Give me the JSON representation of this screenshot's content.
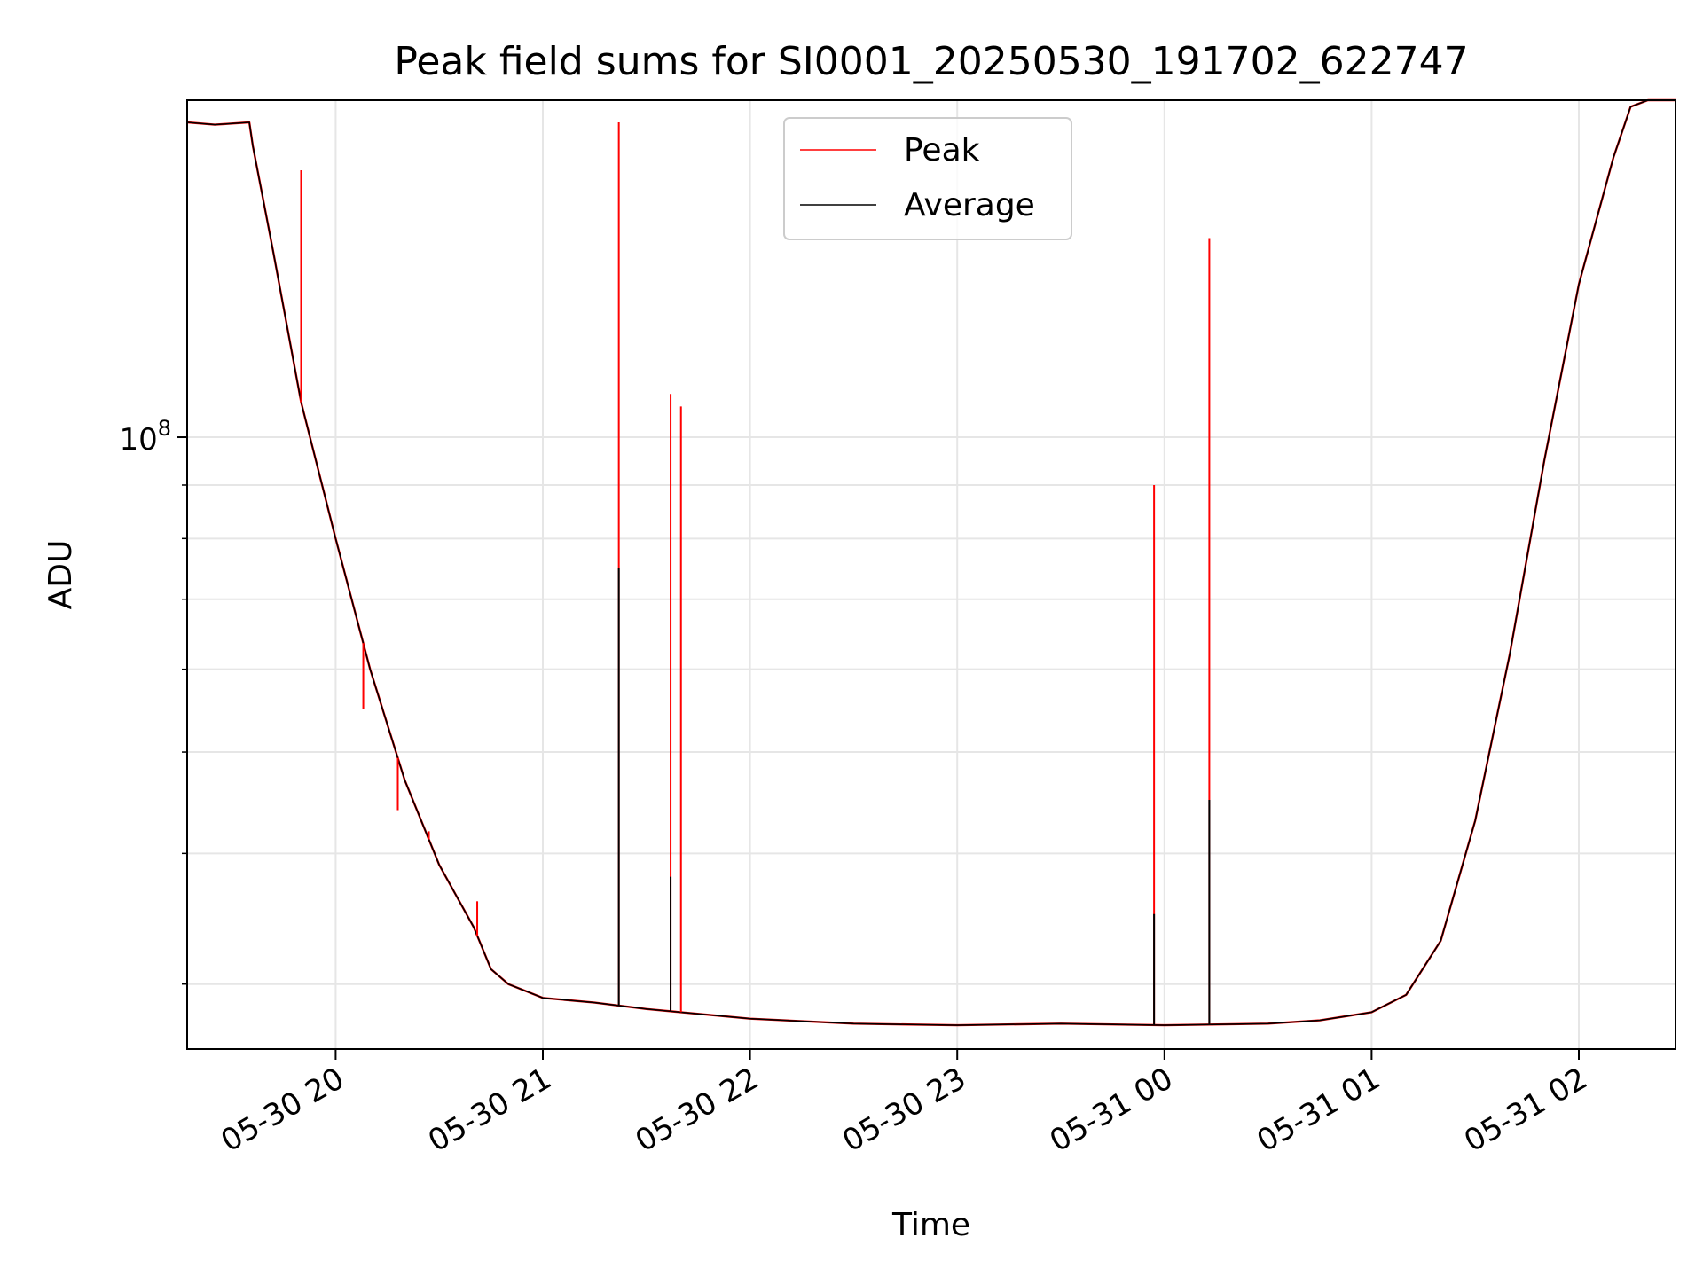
{
  "chart_data": {
    "type": "line",
    "title": "Peak field sums for SI0001_20250530_191702_622747",
    "xlabel": "Time",
    "ylabel": "ADU",
    "yscale": "log",
    "ylim": [
      26000000,
      210000000
    ],
    "xlim": [
      "05-30 19:17",
      "05-31 02:28"
    ],
    "grid": true,
    "legend_position": "top-center",
    "x_ticks": [
      "05-30 20",
      "05-30 21",
      "05-30 22",
      "05-30 23",
      "05-31 00",
      "05-31 01",
      "05-31 02"
    ],
    "y_tick_label": "10^8",
    "series": [
      {
        "name": "Peak",
        "color": "#ff0000",
        "x": [
          "05-30 19:17",
          "05-30 19:25",
          "05-30 19:35",
          "05-30 19:36",
          "05-30 19:42",
          "05-30 19:50",
          "05-30 20:00",
          "05-30 20:10",
          "05-30 20:20",
          "05-30 20:30",
          "05-30 20:40",
          "05-30 20:45",
          "05-30 20:50",
          "05-30 21:00",
          "05-30 21:15",
          "05-30 21:30",
          "05-30 22:00",
          "05-30 22:30",
          "05-30 23:00",
          "05-30 23:30",
          "05-31 00:00",
          "05-31 00:30",
          "05-31 00:45",
          "05-31 01:00",
          "05-31 01:10",
          "05-31 01:20",
          "05-31 01:30",
          "05-31 01:40",
          "05-31 01:50",
          "05-31 02:00",
          "05-31 02:10",
          "05-31 02:15",
          "05-31 02:20",
          "05-31 02:28"
        ],
        "values": [
          200000000,
          199000000,
          200000000,
          190000000,
          150000000,
          108000000,
          80000000,
          60000000,
          47000000,
          39000000,
          34000000,
          31000000,
          30000000,
          29100000,
          28800000,
          28400000,
          27800000,
          27500000,
          27400000,
          27500000,
          27400000,
          27500000,
          27700000,
          28200000,
          29300000,
          33000000,
          43000000,
          62000000,
          95000000,
          140000000,
          185000000,
          207000000,
          210000000,
          210000000
        ],
        "spikes": [
          {
            "x": "05-30 19:50",
            "value": 180000000
          },
          {
            "x": "05-30 20:08",
            "value": 55000000
          },
          {
            "x": "05-30 20:18",
            "value": 44000000
          },
          {
            "x": "05-30 20:27",
            "value": 42000000
          },
          {
            "x": "05-30 20:41",
            "value": 36000000
          },
          {
            "x": "05-30 21:22",
            "value": 200000000
          },
          {
            "x": "05-30 21:37",
            "value": 110000000
          },
          {
            "x": "05-30 21:40",
            "value": 107000000
          },
          {
            "x": "05-30 23:57",
            "value": 90000000
          },
          {
            "x": "05-31 00:13",
            "value": 155000000
          }
        ]
      },
      {
        "name": "Average",
        "color": "#000000",
        "x": [
          "05-30 19:17",
          "05-30 19:25",
          "05-30 19:35",
          "05-30 19:36",
          "05-30 19:42",
          "05-30 19:50",
          "05-30 20:00",
          "05-30 20:10",
          "05-30 20:20",
          "05-30 20:30",
          "05-30 20:40",
          "05-30 20:45",
          "05-30 20:50",
          "05-30 21:00",
          "05-30 21:15",
          "05-30 21:30",
          "05-30 22:00",
          "05-30 22:30",
          "05-30 23:00",
          "05-30 23:30",
          "05-31 00:00",
          "05-31 00:30",
          "05-31 00:45",
          "05-31 01:00",
          "05-31 01:10",
          "05-31 01:20",
          "05-31 01:30",
          "05-31 01:40",
          "05-31 01:50",
          "05-31 02:00",
          "05-31 02:10",
          "05-31 02:15",
          "05-31 02:20",
          "05-31 02:28"
        ],
        "values": [
          200000000,
          199000000,
          200000000,
          190000000,
          150000000,
          108000000,
          80000000,
          60000000,
          47000000,
          39000000,
          34000000,
          31000000,
          30000000,
          29100000,
          28800000,
          28400000,
          27800000,
          27500000,
          27400000,
          27500000,
          27400000,
          27500000,
          27700000,
          28200000,
          29300000,
          33000000,
          43000000,
          62000000,
          95000000,
          140000000,
          185000000,
          207000000,
          210000000,
          210000000
        ],
        "spikes": [
          {
            "x": "05-30 21:22",
            "value": 75000000
          },
          {
            "x": "05-30 21:37",
            "value": 38000000
          },
          {
            "x": "05-30 23:57",
            "value": 35000000
          },
          {
            "x": "05-31 00:13",
            "value": 45000000
          }
        ]
      }
    ]
  }
}
